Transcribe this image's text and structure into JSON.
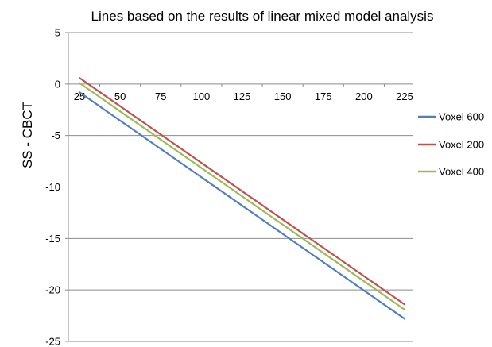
{
  "chart_data": {
    "type": "line",
    "title": "Lines based on the results of linear mixed model analysis",
    "xlabel": "",
    "ylabel": "SS - CBCT",
    "x": [
      25,
      225
    ],
    "x_ticks": [
      25,
      50,
      75,
      100,
      125,
      150,
      175,
      200,
      225
    ],
    "y_ticks": [
      5,
      0,
      -5,
      -10,
      -15,
      -20,
      -25
    ],
    "xlim": [
      25,
      225
    ],
    "ylim": [
      -25,
      5
    ],
    "grid": "horizontal",
    "legend_position": "right",
    "series": [
      {
        "name": "Voxel 600",
        "x": [
          25,
          225
        ],
        "values": [
          -0.8,
          -22.8
        ],
        "color": "#4f7ec1"
      },
      {
        "name": "Voxel 200",
        "x": [
          25,
          225
        ],
        "values": [
          0.6,
          -21.4
        ],
        "color": "#c0504d"
      },
      {
        "name": "Voxel 400",
        "x": [
          25,
          225
        ],
        "values": [
          0.1,
          -21.9
        ],
        "color": "#9bbb59"
      }
    ]
  }
}
